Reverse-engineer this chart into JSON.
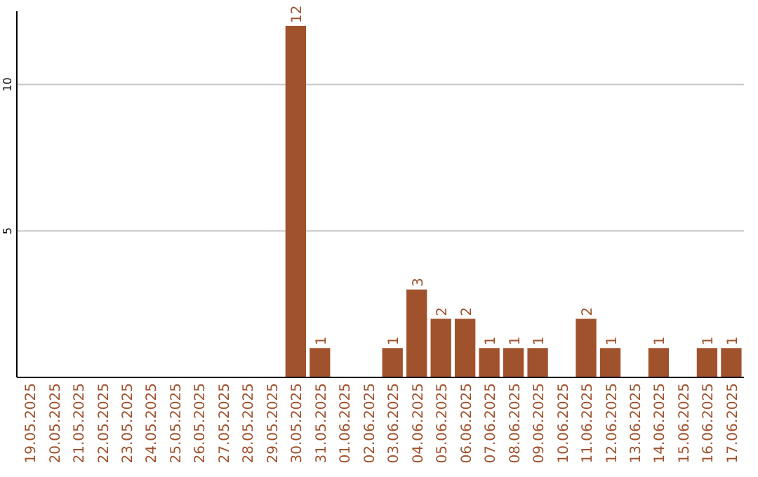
{
  "chart_data": {
    "type": "bar",
    "categories": [
      "19.05.2025",
      "20.05.2025",
      "21.05.2025",
      "22.05.2025",
      "23.05.2025",
      "24.05.2025",
      "25.05.2025",
      "26.05.2025",
      "27.05.2025",
      "28.05.2025",
      "29.05.2025",
      "30.05.2025",
      "31.05.2025",
      "01.06.2025",
      "02.06.2025",
      "03.06.2025",
      "04.06.2025",
      "05.06.2025",
      "06.06.2025",
      "07.06.2025",
      "08.06.2025",
      "09.06.2025",
      "10.06.2025",
      "11.06.2025",
      "12.06.2025",
      "13.06.2025",
      "14.06.2025",
      "15.06.2025",
      "16.06.2025",
      "17.06.2025"
    ],
    "values": [
      0,
      0,
      0,
      0,
      0,
      0,
      0,
      0,
      0,
      0,
      0,
      12,
      1,
      0,
      0,
      1,
      3,
      2,
      2,
      1,
      1,
      1,
      0,
      2,
      1,
      0,
      1,
      0,
      1,
      1
    ],
    "value_labels": [
      null,
      null,
      null,
      null,
      null,
      null,
      null,
      null,
      null,
      null,
      null,
      "12",
      "1",
      null,
      null,
      "1",
      "3",
      "2",
      "2",
      "1",
      "1",
      "1",
      null,
      "2",
      "1",
      null,
      "1",
      null,
      "1",
      "1"
    ],
    "color": "#a0522d",
    "ylim": [
      0,
      12.5
    ],
    "yticks": [
      5,
      10
    ],
    "grid": "y"
  }
}
